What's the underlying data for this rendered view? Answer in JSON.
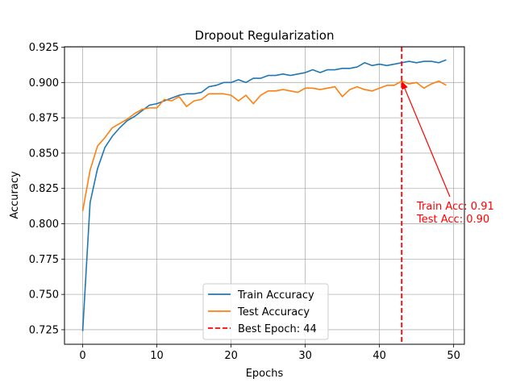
{
  "chart_data": {
    "type": "line",
    "title": "Dropout Regularization",
    "xlabel": "Epochs",
    "ylabel": "Accuracy",
    "xlim": [
      -2.45,
      51.45
    ],
    "ylim": [
      0.7147,
      0.9253
    ],
    "xticks": [
      0,
      10,
      20,
      30,
      40,
      50
    ],
    "yticks": [
      0.725,
      0.75,
      0.775,
      0.8,
      0.825,
      0.85,
      0.875,
      0.9,
      0.925
    ],
    "ytick_labels": [
      "0.725",
      "0.750",
      "0.775",
      "0.800",
      "0.825",
      "0.850",
      "0.875",
      "0.900",
      "0.925"
    ],
    "grid": true,
    "legend_position": "lower-center",
    "x": [
      0,
      1,
      2,
      3,
      4,
      5,
      6,
      7,
      8,
      9,
      10,
      11,
      12,
      13,
      14,
      15,
      16,
      17,
      18,
      19,
      20,
      21,
      22,
      23,
      24,
      25,
      26,
      27,
      28,
      29,
      30,
      31,
      32,
      33,
      34,
      35,
      36,
      37,
      38,
      39,
      40,
      41,
      42,
      43,
      44,
      45,
      46,
      47,
      48,
      49
    ],
    "series": [
      {
        "name": "Train Accuracy",
        "color": "#1f77b4",
        "style": "solid",
        "values": [
          0.724,
          0.815,
          0.839,
          0.854,
          0.862,
          0.868,
          0.873,
          0.876,
          0.88,
          0.884,
          0.885,
          0.887,
          0.889,
          0.891,
          0.892,
          0.892,
          0.893,
          0.897,
          0.898,
          0.9,
          0.9,
          0.902,
          0.9,
          0.903,
          0.903,
          0.905,
          0.905,
          0.906,
          0.905,
          0.906,
          0.907,
          0.909,
          0.907,
          0.909,
          0.909,
          0.91,
          0.91,
          0.911,
          0.914,
          0.912,
          0.913,
          0.912,
          0.913,
          0.914,
          0.915,
          0.914,
          0.915,
          0.915,
          0.914,
          0.916
        ]
      },
      {
        "name": "Test Accuracy",
        "color": "#ff7f0e",
        "style": "solid",
        "values": [
          0.809,
          0.838,
          0.855,
          0.861,
          0.868,
          0.871,
          0.874,
          0.878,
          0.881,
          0.882,
          0.882,
          0.888,
          0.887,
          0.89,
          0.883,
          0.887,
          0.888,
          0.892,
          0.892,
          0.892,
          0.891,
          0.887,
          0.891,
          0.885,
          0.891,
          0.894,
          0.894,
          0.895,
          0.894,
          0.893,
          0.896,
          0.896,
          0.895,
          0.896,
          0.897,
          0.89,
          0.895,
          0.897,
          0.895,
          0.894,
          0.896,
          0.898,
          0.898,
          0.901,
          0.899,
          0.9,
          0.896,
          0.899,
          0.901,
          0.898
        ]
      }
    ],
    "best_epoch_line": {
      "label": "Best Epoch: 44",
      "x": 43,
      "color": "#ff0000",
      "style": "dashed"
    },
    "annotation": {
      "line1": "Train Acc: 0.91",
      "line2": "Test Acc: 0.90",
      "arrow_target": [
        43,
        0.901
      ],
      "color": "#ff0000"
    }
  }
}
